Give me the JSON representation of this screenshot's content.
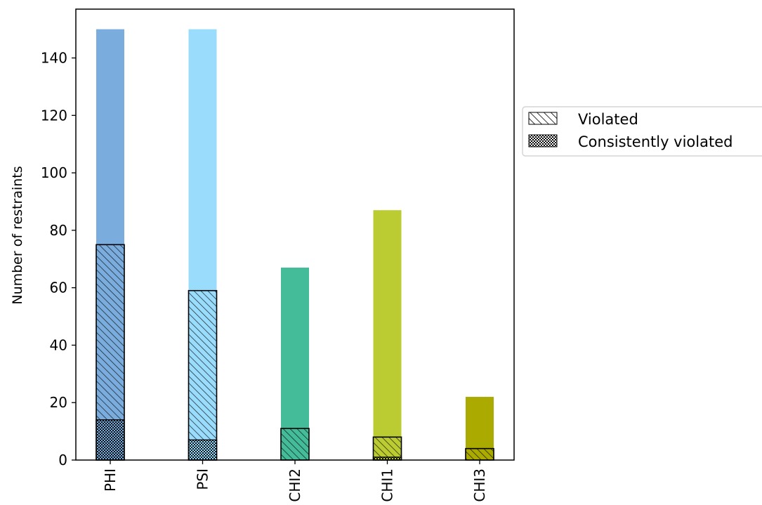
{
  "chart_data": {
    "type": "bar",
    "categories": [
      "PHI",
      "PSI",
      "CHI2",
      "CHI1",
      "CHI3"
    ],
    "series": [
      {
        "values": [
          150,
          150,
          67,
          87,
          22
        ]
      },
      {
        "name": "Violated",
        "values": [
          75,
          59,
          11,
          8,
          4
        ]
      },
      {
        "name": "Consistently violated",
        "values": [
          14,
          7,
          0,
          1,
          0
        ]
      }
    ],
    "colors": [
      "#7aaddd",
      "#99dcfc",
      "#44bb99",
      "#bbcc33",
      "#aaaa00"
    ],
    "xlabel": "",
    "ylabel": "Number of restraints",
    "ylim": [
      0,
      157
    ],
    "yticks": [
      0,
      20,
      40,
      60,
      80,
      100,
      120,
      140
    ],
    "grid": false,
    "legend_position": "outside-right"
  }
}
